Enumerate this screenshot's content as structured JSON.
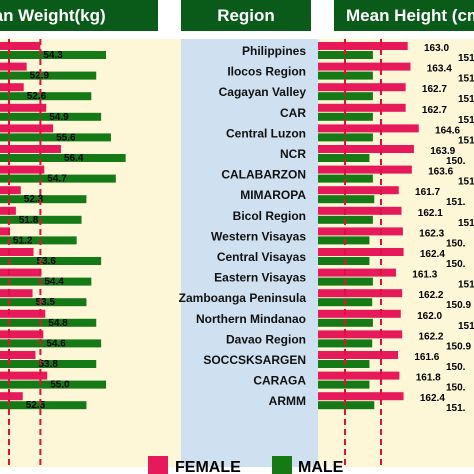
{
  "headers": {
    "left": "Mean Weight(kg)",
    "middle": "Region",
    "right": "Mean Height (cm)"
  },
  "colors": {
    "female": "#e6195a",
    "male": "#157a15",
    "header_bg": "#0a5a1a",
    "panel_bg": "#fdf7d8",
    "region_bg": "#cfe0f0",
    "ref_line": "#e0103a"
  },
  "legend": {
    "female_label": "FEMALE",
    "male_label": "MALE",
    "placement": "bottom-center"
  },
  "chart_data": {
    "type": "bar",
    "orientation": "horizontal",
    "categories": [
      "Philippines",
      "Ilocos Region",
      "Cagayan Valley",
      "CAR",
      "Central Luzon",
      "NCR",
      "CALABARZON",
      "MIMAROPA",
      "Bicol Region",
      "Western Visayas",
      "Central Visayas",
      "Eastern Visayas",
      "Zamboanga Peninsula",
      "Northern Mindanao",
      "Davao Region",
      "SOCCSKSARGEN",
      "CARAGA",
      "ARMM"
    ],
    "weight_labels": [
      "54.3",
      "52.9",
      "52.6",
      "54.9",
      "55.6",
      "56.4",
      "54.7",
      "52.3",
      "51.8",
      "51.2",
      "53.6",
      "54.4",
      "53.5",
      "54.8",
      "54.6",
      "53.8",
      "55.0",
      "52.5"
    ],
    "height_labels": [
      "163.0",
      "163.4",
      "162.7",
      "162.7",
      "164.6",
      "163.9",
      "163.6",
      "161.7",
      "162.1",
      "162.3",
      "162.4",
      "161.3",
      "162.2",
      "162.0",
      "162.2",
      "161.6",
      "161.8",
      "162.4"
    ],
    "height_male_labels": [
      "151",
      "151",
      "151",
      "151",
      "151",
      "150.",
      "151",
      "151.",
      "151",
      "150.",
      "150.",
      "151",
      "150.9",
      "151",
      "150.9",
      "150.",
      "150.",
      "151."
    ],
    "series": [
      {
        "name": "FEMALE",
        "chart": "weight",
        "values": [
          54.3,
          52.9,
          52.6,
          54.9,
          55.6,
          56.4,
          54.7,
          52.3,
          51.8,
          51.2,
          53.6,
          54.4,
          53.5,
          54.8,
          54.6,
          53.8,
          55.0,
          52.5
        ]
      },
      {
        "name": "MALE",
        "chart": "weight",
        "values": [
          61.0,
          60.0,
          59.5,
          60.5,
          61.5,
          63.0,
          62.0,
          59.0,
          58.5,
          58.0,
          60.5,
          59.5,
          59.0,
          60.0,
          60.5,
          60.0,
          61.0,
          59.0
        ]
      },
      {
        "name": "FEMALE",
        "chart": "height",
        "values": [
          163.0,
          163.4,
          162.7,
          162.7,
          164.6,
          163.9,
          163.6,
          161.7,
          162.1,
          162.3,
          162.4,
          161.3,
          162.2,
          162.0,
          162.2,
          161.6,
          161.8,
          162.4
        ]
      },
      {
        "name": "MALE",
        "chart": "height",
        "values": [
          151.0,
          151.0,
          151.0,
          151.0,
          151.0,
          150.5,
          151.0,
          151.2,
          151.0,
          150.5,
          150.5,
          151.0,
          150.9,
          151.0,
          150.9,
          150.5,
          150.5,
          151.2
        ]
      }
    ],
    "weight_reference_lines": [
      54.3,
      61.0
    ],
    "height_reference_lines": [
      151.0,
      163.0
    ],
    "grid": false
  }
}
